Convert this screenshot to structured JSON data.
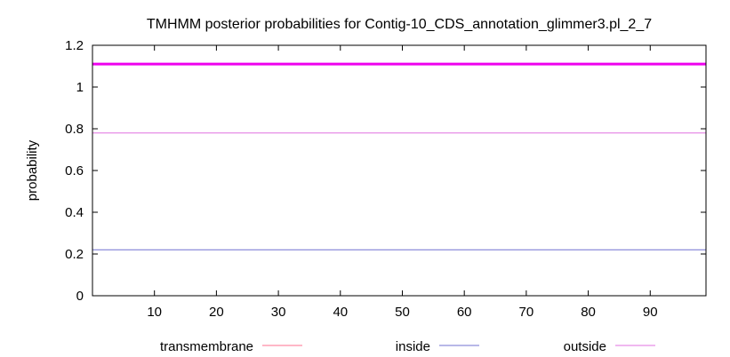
{
  "chart_data": {
    "type": "line",
    "title": "TMHMM posterior probabilities for Contig-10_CDS_annotation_glimmer3.pl_2_7",
    "xlabel": "",
    "ylabel": "probability",
    "xlim": [
      0,
      99
    ],
    "ylim": [
      0,
      1.2
    ],
    "x_ticks": [
      10,
      20,
      30,
      40,
      50,
      60,
      70,
      80,
      90
    ],
    "y_ticks": [
      0,
      0.2,
      0.4,
      0.6,
      0.8,
      1,
      1.2
    ],
    "y_tick_labels": [
      "0",
      "0.2",
      "0.4",
      "0.6",
      "0.8",
      "1",
      "1.2"
    ],
    "grid": false,
    "legend_position": "bottom",
    "series": [
      {
        "name": "transmembrane",
        "color": "#ff6f8f",
        "x": [
          0,
          99
        ],
        "y": [
          0,
          0
        ]
      },
      {
        "name": "inside",
        "color": "#7070d0",
        "x": [
          0,
          99
        ],
        "y": [
          0.22,
          0.22
        ]
      },
      {
        "name": "outside",
        "color": "#e070e0",
        "x": [
          0,
          99
        ],
        "y": [
          0.78,
          0.78
        ]
      }
    ],
    "annotations": [
      {
        "kind": "horizontal-line",
        "y": 1.11,
        "color": "#ee00ee"
      }
    ]
  }
}
